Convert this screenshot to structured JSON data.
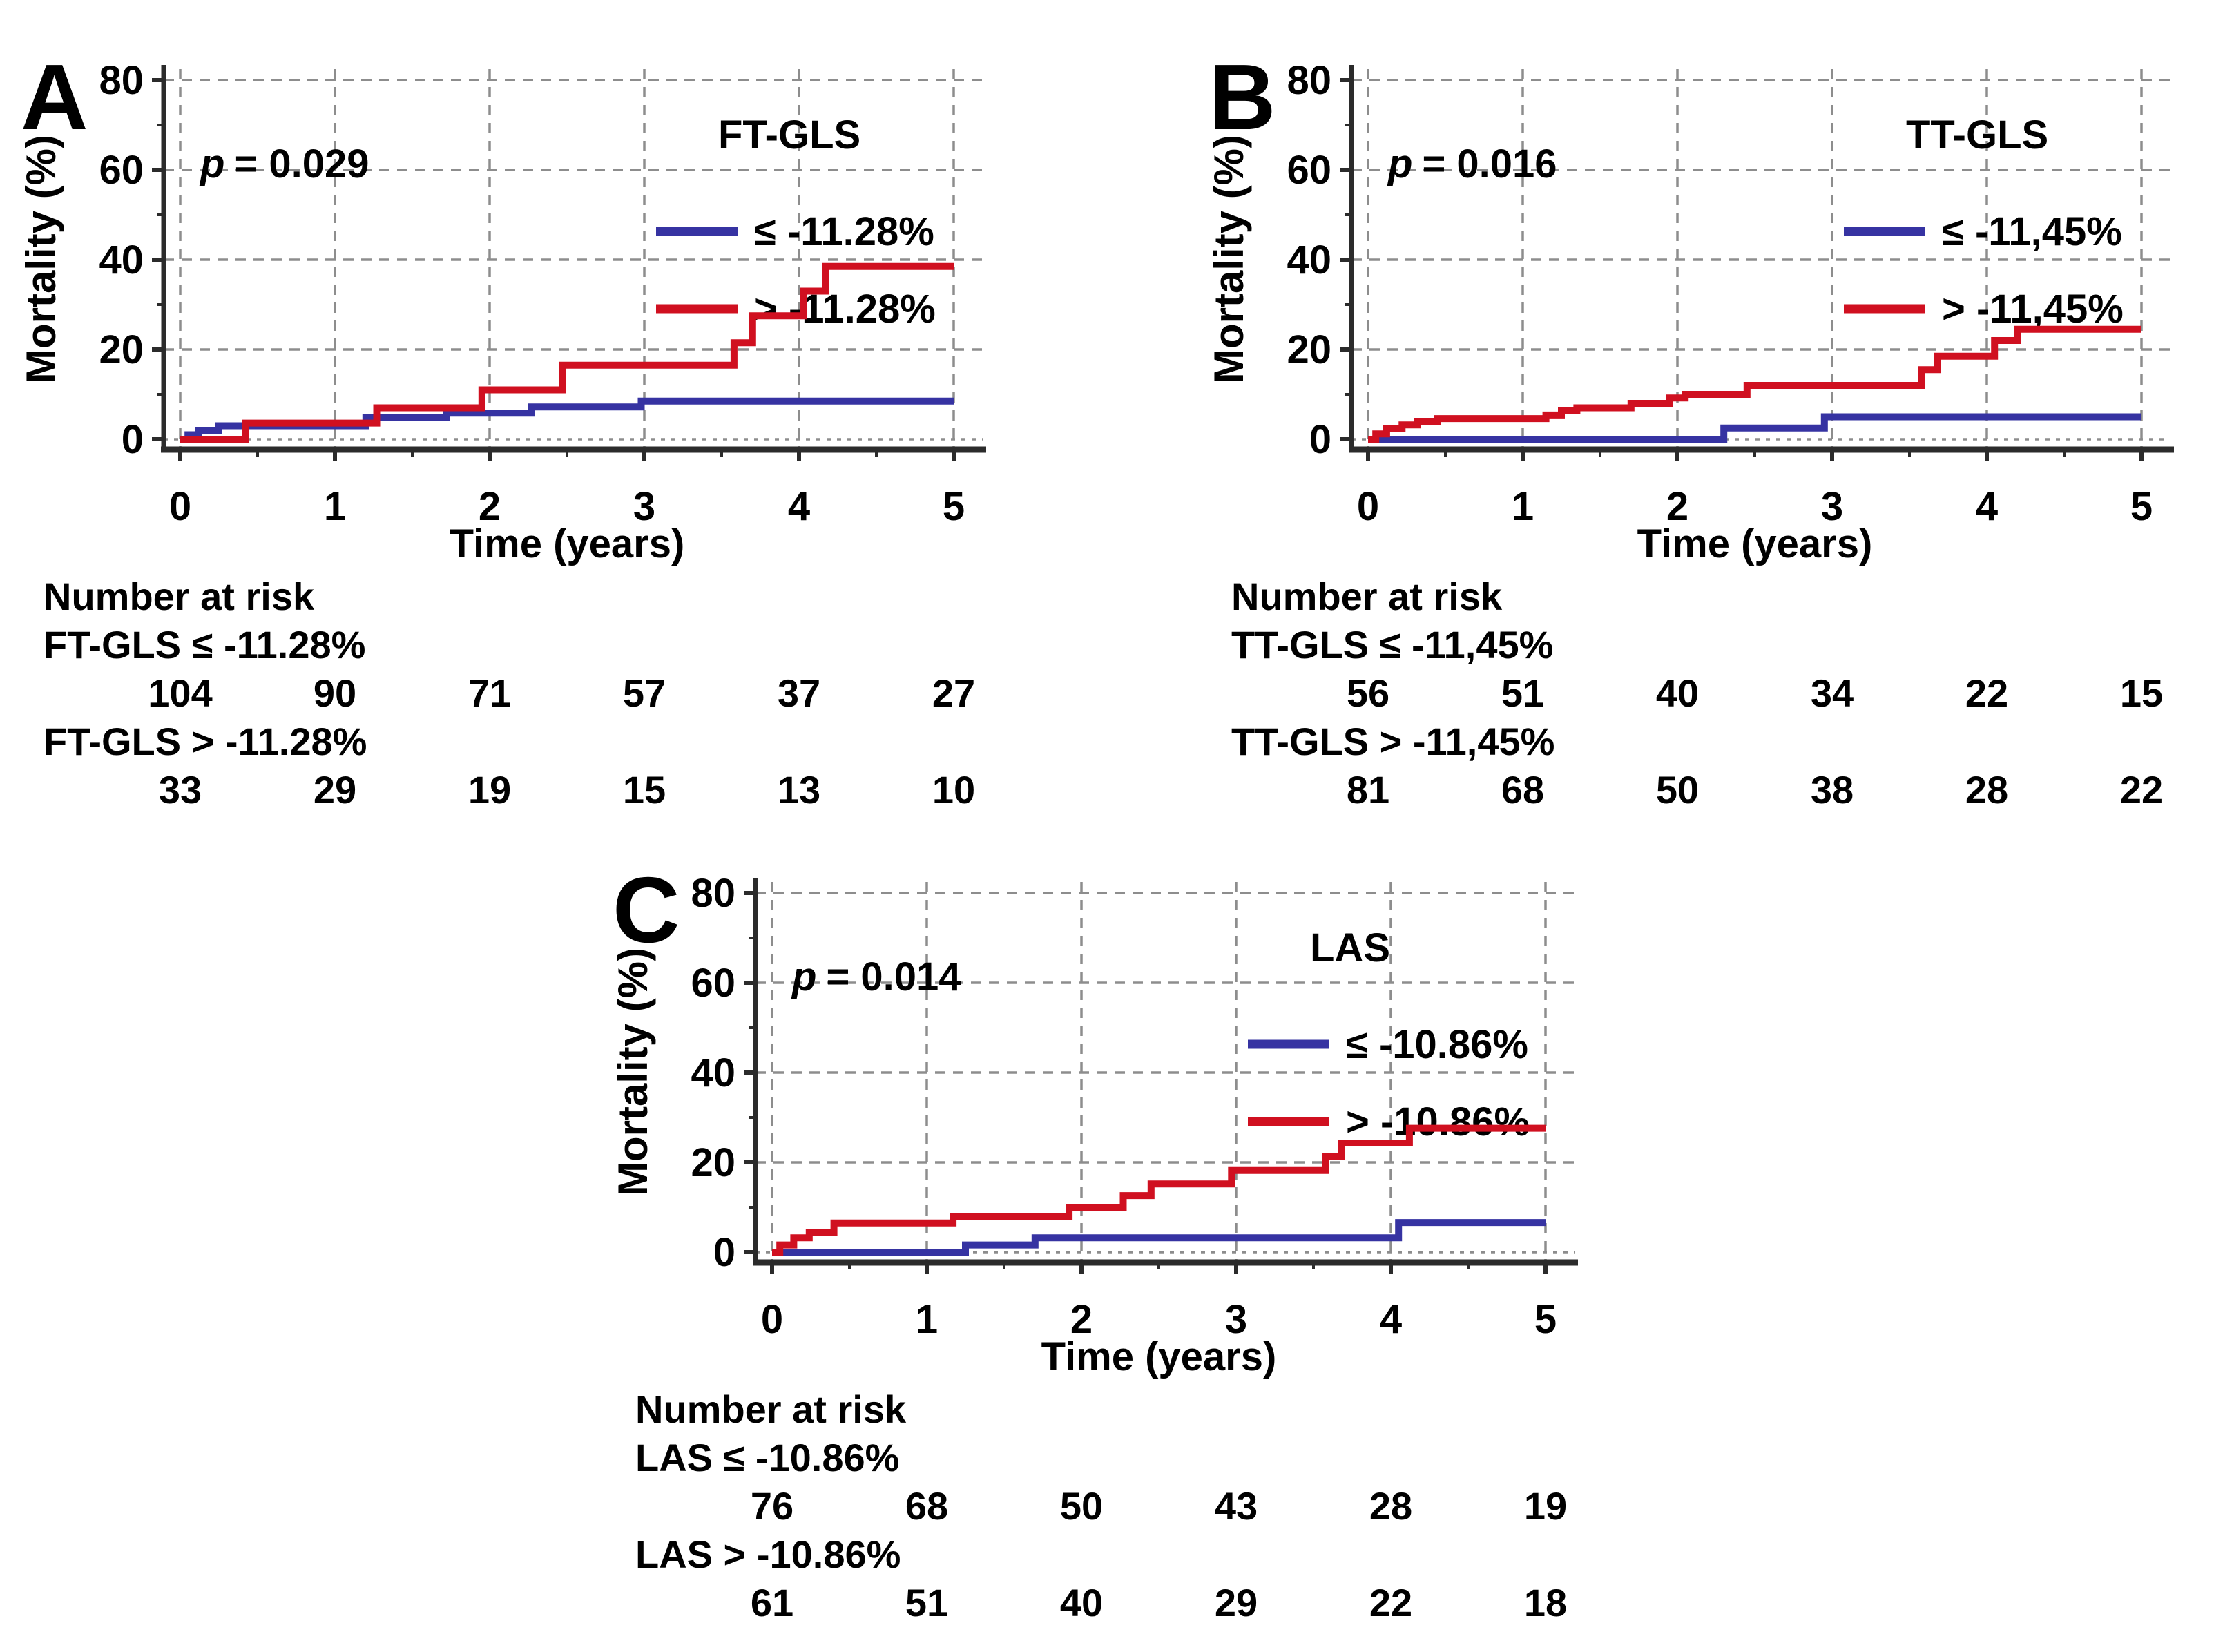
{
  "colors": {
    "blue": "#3633a2",
    "red": "#d01020",
    "axis": "#2b2b2b",
    "grid": "#8d8d8d",
    "text": "#000000",
    "background": "#ffffff"
  },
  "chart_data": [
    {
      "type": "line",
      "line_shape": "step-after",
      "panel_label": "A",
      "p_label": {
        "symbol": "p",
        "text": "= 0.029"
      },
      "xlabel": "Time (years)",
      "ylabel": "Mortality (%)",
      "xlim": [
        0,
        5
      ],
      "ylim": [
        0,
        80
      ],
      "xticks": [
        0,
        1,
        2,
        3,
        4,
        5
      ],
      "yticks": [
        0,
        20,
        40,
        60,
        80
      ],
      "grid": true,
      "legend_position": "top-right",
      "legend": {
        "title": "FT-GLS",
        "entries": [
          {
            "label": "≤ -11.28%",
            "color": "blue"
          },
          {
            "label": "> -11.28%",
            "color": "red"
          }
        ]
      },
      "series": [
        {
          "name": "FT-GLS ≤ -11.28%",
          "color": "blue",
          "start": [
            0,
            0
          ],
          "steps": [
            [
              0.05,
              1
            ],
            [
              0.12,
              2
            ],
            [
              0.25,
              3
            ],
            [
              1.2,
              4.8
            ],
            [
              1.72,
              5.8
            ],
            [
              2.27,
              7.2
            ],
            [
              2.98,
              8.5
            ]
          ]
        },
        {
          "name": "FT-GLS > -11.28%",
          "color": "red",
          "start": [
            0,
            0
          ],
          "steps": [
            [
              0.42,
              3.6
            ],
            [
              1.27,
              7
            ],
            [
              1.95,
              11
            ],
            [
              2.47,
              16.5
            ],
            [
              3.58,
              21.5
            ],
            [
              3.7,
              27.5
            ],
            [
              4.03,
              33
            ],
            [
              4.17,
              38.5
            ]
          ]
        }
      ],
      "number_at_risk": {
        "heading": "Number at risk",
        "rows": [
          {
            "label": "FT-GLS ≤ -11.28%",
            "counts": [
              104,
              90,
              71,
              57,
              37,
              27
            ]
          },
          {
            "label": "FT-GLS > -11.28%",
            "counts": [
              33,
              29,
              19,
              15,
              13,
              10
            ]
          }
        ]
      }
    },
    {
      "type": "line",
      "line_shape": "step-after",
      "panel_label": "B",
      "p_label": {
        "symbol": "p",
        "text": "= 0.016"
      },
      "xlabel": "Time (years)",
      "ylabel": "Mortality (%)",
      "xlim": [
        0,
        5
      ],
      "ylim": [
        0,
        80
      ],
      "xticks": [
        0,
        1,
        2,
        3,
        4,
        5
      ],
      "yticks": [
        0,
        20,
        40,
        60,
        80
      ],
      "grid": true,
      "legend_position": "top-right",
      "legend": {
        "title": "TT-GLS",
        "entries": [
          {
            "label": "≤ -11,45%",
            "color": "blue"
          },
          {
            "label": "> -11,45%",
            "color": "red"
          }
        ]
      },
      "series": [
        {
          "name": "TT-GLS ≤ -11,45%",
          "color": "blue",
          "start": [
            0,
            0
          ],
          "steps": [
            [
              2.3,
              2.5
            ],
            [
              2.95,
              5
            ]
          ]
        },
        {
          "name": "TT-GLS > -11,45%",
          "color": "red",
          "start": [
            0,
            0
          ],
          "steps": [
            [
              0.05,
              1.2
            ],
            [
              0.12,
              2.3
            ],
            [
              0.22,
              3.2
            ],
            [
              0.32,
              4
            ],
            [
              0.45,
              4.6
            ],
            [
              1.15,
              5.4
            ],
            [
              1.25,
              6.3
            ],
            [
              1.35,
              7
            ],
            [
              1.7,
              8
            ],
            [
              1.95,
              9.2
            ],
            [
              2.05,
              10
            ],
            [
              2.45,
              12
            ],
            [
              3.58,
              15.5
            ],
            [
              3.68,
              18.5
            ],
            [
              4.05,
              22
            ],
            [
              4.2,
              24.5
            ]
          ]
        }
      ],
      "number_at_risk": {
        "heading": "Number at risk",
        "rows": [
          {
            "label": "TT-GLS ≤ -11,45%",
            "counts": [
              56,
              51,
              40,
              34,
              22,
              15
            ]
          },
          {
            "label": "TT-GLS > -11,45%",
            "counts": [
              81,
              68,
              50,
              38,
              28,
              22
            ]
          }
        ]
      }
    },
    {
      "type": "line",
      "line_shape": "step-after",
      "panel_label": "C",
      "p_label": {
        "symbol": "p",
        "text": "= 0.014"
      },
      "xlabel": "Time (years)",
      "ylabel": "Mortality (%)",
      "xlim": [
        0,
        5
      ],
      "ylim": [
        0,
        80
      ],
      "xticks": [
        0,
        1,
        2,
        3,
        4,
        5
      ],
      "yticks": [
        0,
        20,
        40,
        60,
        80
      ],
      "grid": true,
      "legend_position": "top-right",
      "legend": {
        "title": "LAS",
        "entries": [
          {
            "label": "≤ -10.86%",
            "color": "blue"
          },
          {
            "label": "> -10.86%",
            "color": "red"
          }
        ]
      },
      "series": [
        {
          "name": "LAS ≤ -10.86%",
          "color": "blue",
          "start": [
            0,
            0
          ],
          "steps": [
            [
              1.25,
              1.6
            ],
            [
              1.7,
              3.2
            ],
            [
              4.05,
              6.6
            ]
          ]
        },
        {
          "name": "LAS > -10.86%",
          "color": "red",
          "start": [
            0,
            0
          ],
          "steps": [
            [
              0.05,
              1.6
            ],
            [
              0.14,
              3.2
            ],
            [
              0.24,
              4.4
            ],
            [
              0.4,
              6.5
            ],
            [
              1.17,
              8
            ],
            [
              1.92,
              10
            ],
            [
              2.27,
              12.6
            ],
            [
              2.45,
              15.2
            ],
            [
              2.97,
              18.2
            ],
            [
              3.58,
              21.3
            ],
            [
              3.68,
              24.3
            ],
            [
              4.12,
              27.6
            ]
          ]
        }
      ],
      "number_at_risk": {
        "heading": "Number at risk",
        "rows": [
          {
            "label": "LAS ≤ -10.86%",
            "counts": [
              76,
              68,
              50,
              43,
              28,
              19
            ]
          },
          {
            "label": "LAS > -10.86%",
            "counts": [
              61,
              51,
              40,
              29,
              22,
              18
            ]
          }
        ]
      }
    }
  ]
}
